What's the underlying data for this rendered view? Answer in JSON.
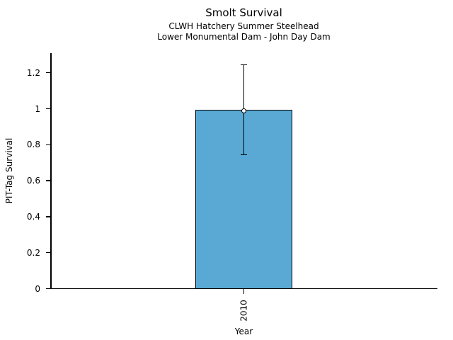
{
  "window": {
    "background": "#ffffff"
  },
  "chart_data": {
    "type": "bar",
    "title": "Smolt Survival",
    "subtitle_line1": "CLWH Hatchery Summer Steelhead",
    "subtitle_line2": "Lower Monumental Dam - John Day Dam",
    "xlabel": "Year",
    "ylabel": "PIT-Tag Survival",
    "categories": [
      "2010"
    ],
    "values": [
      0.99
    ],
    "error_low": [
      0.745
    ],
    "error_high": [
      1.245
    ],
    "marker": "open-circle",
    "bar_color": "#59A9D4",
    "edge_color": "#000000",
    "text_color": "#000000",
    "yticks": {
      "values": [
        0,
        0.2,
        0.4,
        0.6,
        0.8,
        1.0,
        1.2
      ],
      "labels": [
        "0",
        "0.2",
        "0.4",
        "0.6",
        "0.8",
        "1",
        "1.2"
      ]
    },
    "ylim": [
      0,
      1.31
    ],
    "grid": false,
    "legend": "none"
  }
}
